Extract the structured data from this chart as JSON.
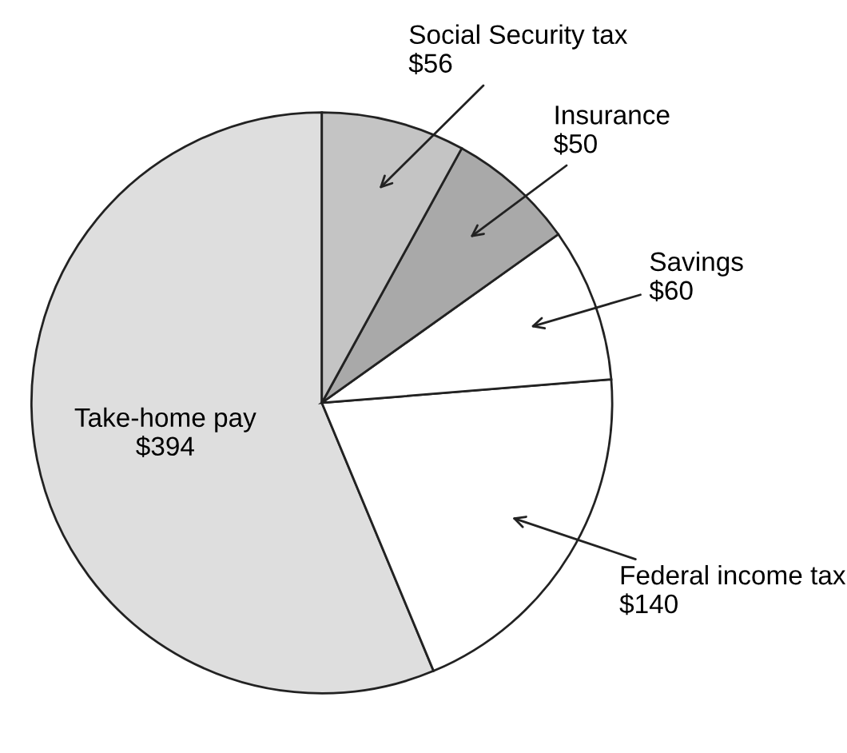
{
  "chart_data": {
    "type": "pie",
    "categories": [
      "Take-home pay",
      "Federal income tax",
      "Savings",
      "Insurance",
      "Social Security tax"
    ],
    "values": [
      394,
      140,
      60,
      50,
      56
    ],
    "value_labels": [
      "$394",
      "$140",
      "$60",
      "$50",
      "$56"
    ],
    "colors": [
      "#dedede",
      "#ffffff",
      "#ffffff",
      "#a9a9a9",
      "#c4c4c4"
    ],
    "legend": false
  }
}
